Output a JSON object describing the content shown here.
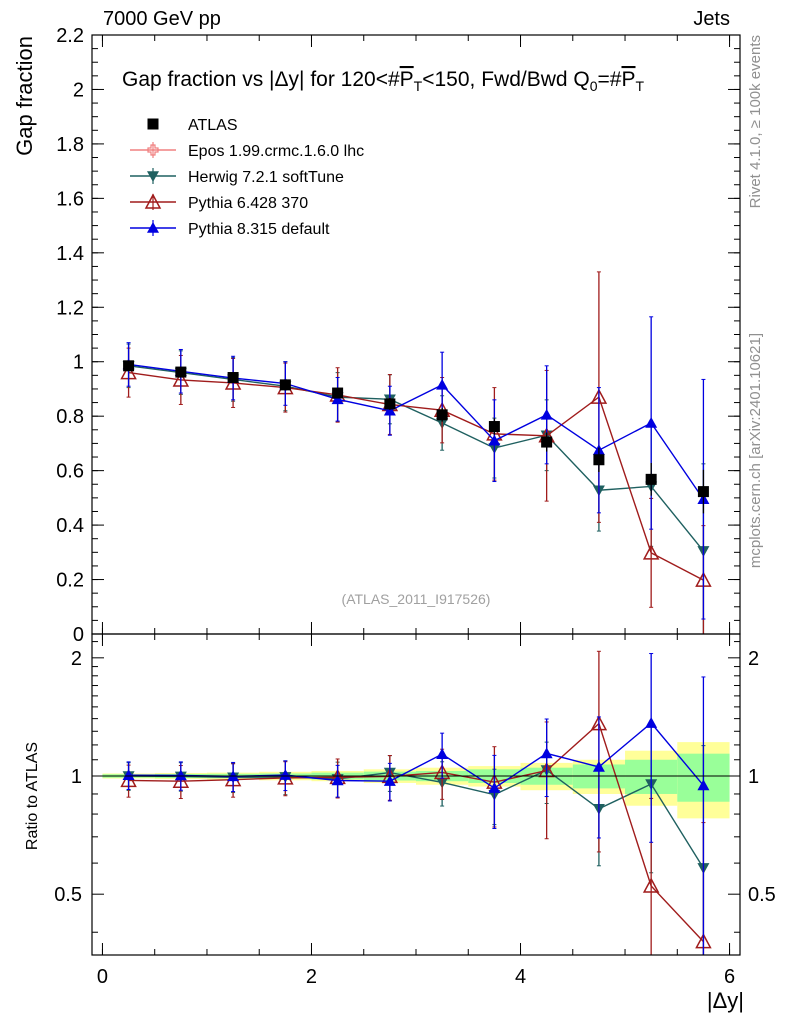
{
  "header": {
    "left": "7000 GeV pp",
    "right": "Jets",
    "side_rivet": "Rivet 4.1.0, ≥ 100k events",
    "side_mcplots": "mcplots.cern.ch [arXiv:2401.10621]"
  },
  "chart_data": {
    "type": "scatter",
    "title": "Gap fraction vs |Δy| for 120<#P̅T<150, Fwd/Bwd Q0=#P̅T",
    "title_parts": {
      "prefix": "Gap fraction vs |Δy| for 120<#",
      "p1": "P",
      "t1": "T",
      "mid": "<150, Fwd/Bwd Q",
      "q0": "0",
      "eq": "=#",
      "p2": "P",
      "t2": "T"
    },
    "analysis_tag": "(ATLAS_2011_I917526)",
    "xlabel": "|Δy|",
    "ylabel": "Gap fraction",
    "ratio_ylabel": "Ratio to ATLAS",
    "xlim": [
      -0.1,
      6.1
    ],
    "ylim": [
      0,
      2.2
    ],
    "ratio_ylim": [
      0.35,
      2.3
    ],
    "x_ticks": [
      0,
      2,
      4,
      6
    ],
    "y_ticks": [
      0,
      0.2,
      0.4,
      0.6,
      0.8,
      1,
      1.2,
      1.4,
      1.6,
      1.8,
      2,
      2.2
    ],
    "ratio_ticks": [
      0.5,
      1,
      2
    ],
    "x": [
      0.25,
      0.75,
      1.25,
      1.75,
      2.25,
      2.75,
      3.25,
      3.75,
      4.25,
      4.75,
      5.25,
      5.75
    ],
    "data": {
      "name": "ATLAS",
      "values": [
        0.985,
        0.962,
        0.942,
        0.915,
        0.885,
        0.845,
        0.805,
        0.762,
        0.705,
        0.64,
        0.568,
        0.523
      ],
      "errors": [
        0.01,
        0.012,
        0.012,
        0.014,
        0.018,
        0.022,
        0.025,
        0.03,
        0.035,
        0.045,
        0.06,
        0.08
      ]
    },
    "series": [
      {
        "name": "Epos 1.99.crmc.1.6.0 lhc",
        "color": "#f08080",
        "marker": "cross-open",
        "values": [],
        "errors": []
      },
      {
        "name": "Herwig 7.2.1 softTune",
        "color": "#1f6060",
        "marker": "triangle-down",
        "values": [
          0.985,
          0.96,
          0.935,
          0.91,
          0.87,
          0.862,
          0.775,
          0.683,
          0.73,
          0.528,
          0.542,
          0.305
        ],
        "errors": [
          0.08,
          0.08,
          0.08,
          0.09,
          0.09,
          0.09,
          0.1,
          0.11,
          0.13,
          0.15,
          0.22,
          0.32
        ]
      },
      {
        "name": "Pythia 6.428 370",
        "color": "#a01c1c",
        "marker": "triangle-up-open",
        "values": [
          0.96,
          0.933,
          0.922,
          0.905,
          0.878,
          0.843,
          0.822,
          0.735,
          0.728,
          0.87,
          0.298,
          0.198
        ],
        "errors": [
          0.09,
          0.09,
          0.09,
          0.09,
          0.1,
          0.11,
          0.12,
          0.17,
          0.24,
          0.46,
          0.2,
          0.2
        ]
      },
      {
        "name": "Pythia 8.315 default",
        "color": "#0000e0",
        "marker": "triangle-up",
        "values": [
          0.99,
          0.965,
          0.94,
          0.92,
          0.862,
          0.82,
          0.915,
          0.71,
          0.805,
          0.675,
          0.775,
          0.495
        ],
        "errors": [
          0.08,
          0.08,
          0.08,
          0.08,
          0.08,
          0.09,
          0.12,
          0.15,
          0.18,
          0.23,
          0.39,
          0.44
        ]
      }
    ],
    "ratio_band_inner": [
      0.01,
      0.012,
      0.013,
      0.015,
      0.02,
      0.026,
      0.03,
      0.04,
      0.05,
      0.07,
      0.1,
      0.14
    ],
    "ratio_band_outer": [
      0.015,
      0.018,
      0.02,
      0.025,
      0.03,
      0.04,
      0.05,
      0.06,
      0.08,
      0.1,
      0.16,
      0.22
    ]
  }
}
